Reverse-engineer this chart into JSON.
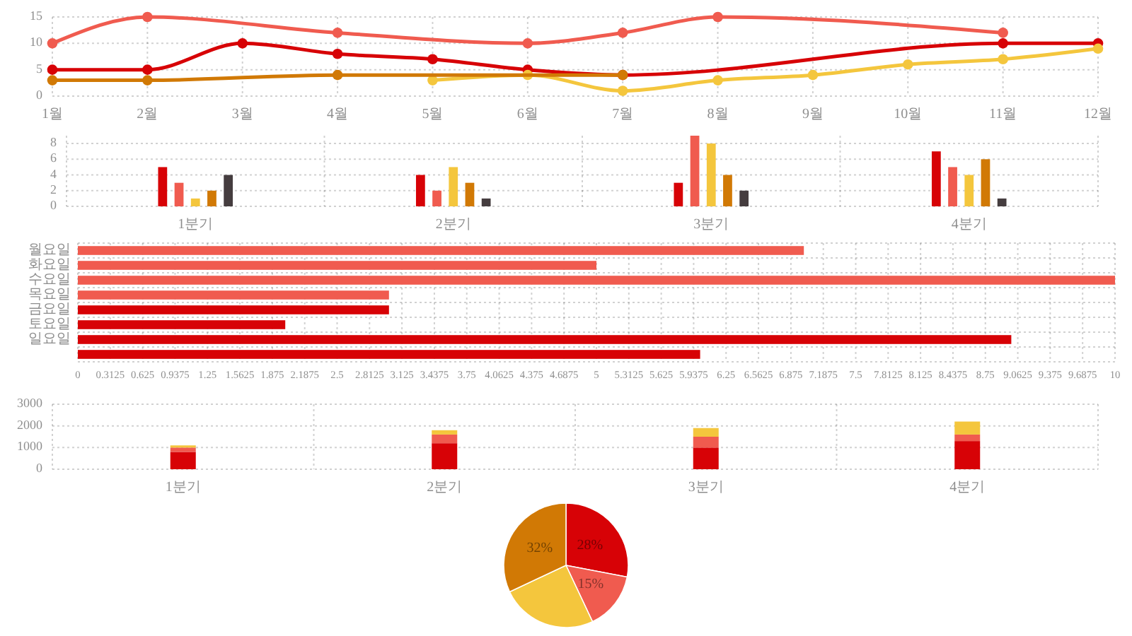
{
  "chart_data": [
    {
      "type": "line",
      "xlim": [
        1,
        12
      ],
      "xticks": [
        {
          "value": 1,
          "label": "1월"
        },
        {
          "value": 2,
          "label": "2월"
        },
        {
          "value": 3,
          "label": "3월"
        },
        {
          "value": 4,
          "label": "4월"
        },
        {
          "value": 5,
          "label": "5월"
        },
        {
          "value": 6,
          "label": "6월"
        },
        {
          "value": 7,
          "label": "7월"
        },
        {
          "value": 8,
          "label": "8월"
        },
        {
          "value": 9,
          "label": "9월"
        },
        {
          "value": 10,
          "label": "10월"
        },
        {
          "value": 11,
          "label": "11월"
        },
        {
          "value": 12,
          "label": "12월"
        }
      ],
      "ylim": [
        0,
        15
      ],
      "yticks": [
        0,
        5,
        10,
        15
      ],
      "grid": true,
      "marker": "circle",
      "series": [
        {
          "color": "#d70206",
          "x": [
            1,
            2,
            3,
            4,
            5,
            6,
            7,
            11,
            12
          ],
          "values": [
            5,
            5,
            10,
            8,
            7,
            5,
            4,
            10,
            10
          ]
        },
        {
          "color": "#f05b4f",
          "x": [
            1,
            2,
            4,
            6,
            7,
            8,
            11
          ],
          "values": [
            10,
            15,
            12,
            10,
            12,
            15,
            12
          ]
        },
        {
          "color": "#f4c63d",
          "x": [
            5,
            6,
            7,
            8,
            9,
            10,
            11,
            12
          ],
          "values": [
            3,
            4,
            1,
            3,
            4,
            6,
            7,
            9
          ]
        },
        {
          "color": "#d17905",
          "x": [
            1,
            2,
            4,
            7
          ],
          "values": [
            3,
            3,
            4,
            4
          ]
        }
      ]
    },
    {
      "type": "bar",
      "categories": [
        "1분기",
        "2분기",
        "3분기",
        "4분기"
      ],
      "ylim": [
        0,
        9
      ],
      "yticks": [
        0,
        2,
        4,
        6,
        8
      ],
      "grid": true,
      "series": [
        {
          "color": "#d70206",
          "values": [
            5,
            4,
            3,
            7
          ]
        },
        {
          "color": "#f05b4f",
          "values": [
            3,
            2,
            9,
            5
          ]
        },
        {
          "color": "#f4c63d",
          "values": [
            1,
            5,
            8,
            4
          ]
        },
        {
          "color": "#d17905",
          "values": [
            2,
            3,
            4,
            6
          ]
        },
        {
          "color": "#453d3f",
          "values": [
            4,
            1,
            2,
            1
          ]
        }
      ]
    },
    {
      "type": "bar",
      "orientation": "horizontal",
      "categories": [
        "월요일",
        "화요일",
        "수요일",
        "목요일",
        "금요일",
        "토요일",
        "일요일",
        null
      ],
      "values": [
        7,
        5,
        10,
        3,
        3,
        2,
        9,
        6
      ],
      "colors": [
        "#f05b4f",
        "#f05b4f",
        "#f05b4f",
        "#f05b4f",
        "#d70206",
        "#d70206",
        "#d70206",
        "#d70206"
      ],
      "xlim": [
        0,
        10
      ],
      "xticks": [
        0,
        0.3125,
        0.625,
        0.9375,
        1.25,
        1.5625,
        1.875,
        2.1875,
        2.5,
        2.8125,
        3.125,
        3.4375,
        3.75,
        4.0625,
        4.375,
        4.6875,
        5,
        5.3125,
        5.625,
        5.9375,
        6.25,
        6.5625,
        6.875,
        7.1875,
        7.5,
        7.8125,
        8.125,
        8.4375,
        8.75,
        9.0625,
        9.375,
        9.6875,
        10
      ],
      "grid": true
    },
    {
      "type": "bar",
      "stacked": true,
      "categories": [
        "1분기",
        "2분기",
        "3분기",
        "4분기"
      ],
      "ylim": [
        0,
        3000
      ],
      "yticks": [
        0,
        1000,
        2000,
        3000
      ],
      "grid": true,
      "series": [
        {
          "color": "#d70206",
          "values": [
            800,
            1200,
            1000,
            1300
          ]
        },
        {
          "color": "#f05b4f",
          "values": [
            200,
            400,
            500,
            300
          ]
        },
        {
          "color": "#f4c63d",
          "values": [
            100,
            200,
            400,
            600
          ]
        }
      ]
    },
    {
      "type": "pie",
      "categories": [
        null,
        null,
        null,
        null
      ],
      "values": [
        28,
        15,
        25,
        32
      ],
      "colors": [
        "#d70206",
        "#f05b4f",
        "#f4c63d",
        "#d17905"
      ],
      "value_labels": [
        "28%",
        "15%",
        null,
        "32%"
      ]
    }
  ]
}
